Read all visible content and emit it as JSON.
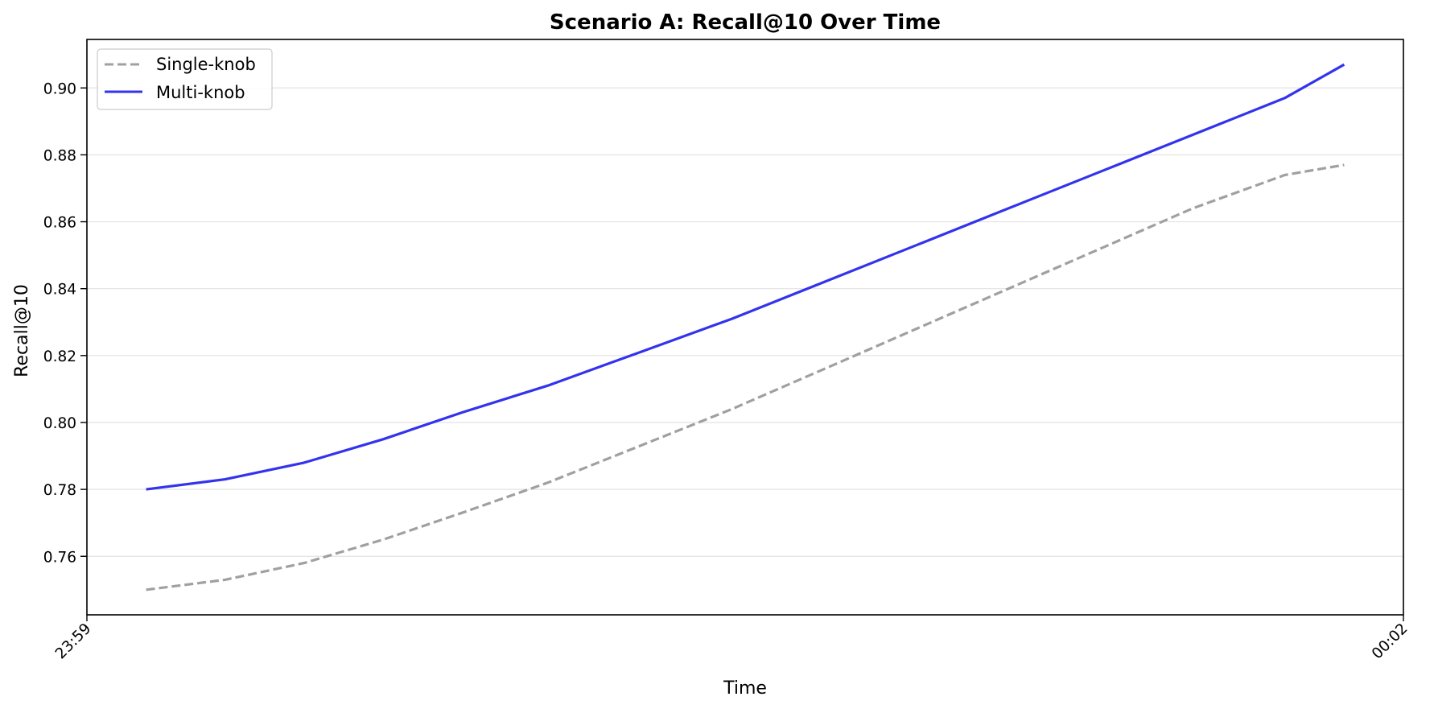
{
  "chart_data": {
    "type": "line",
    "title": "Scenario A: Recall@10 Over Time",
    "xlabel": "Time",
    "ylabel": "Recall@10",
    "x_tick_labels": [
      "23:59",
      "00:02"
    ],
    "y_ticks": [
      0.76,
      0.78,
      0.8,
      0.82,
      0.84,
      0.86,
      0.88,
      0.9
    ],
    "y_tick_labels": [
      "0.76",
      "0.78",
      "0.80",
      "0.82",
      "0.84",
      "0.86",
      "0.88",
      "0.90"
    ],
    "ylim": [
      0.7425,
      0.9145
    ],
    "grid": "horizontal",
    "legend_position": "top-left",
    "x_points": [
      0.045,
      0.105,
      0.165,
      0.225,
      0.285,
      0.35,
      0.42,
      0.49,
      0.56,
      0.63,
      0.7,
      0.77,
      0.84,
      0.91,
      0.955
    ],
    "series": [
      {
        "name": "Single-knob",
        "style": "dashed",
        "color": "#a0a0a0",
        "values": [
          0.75,
          0.753,
          0.758,
          0.765,
          0.773,
          0.782,
          0.793,
          0.804,
          0.816,
          0.828,
          0.84,
          0.852,
          0.864,
          0.874,
          0.877
        ]
      },
      {
        "name": "Multi-knob",
        "style": "solid",
        "color": "#3333ee",
        "values": [
          0.78,
          0.783,
          0.788,
          0.795,
          0.803,
          0.811,
          0.821,
          0.831,
          0.842,
          0.853,
          0.864,
          0.875,
          0.886,
          0.897,
          0.907
        ]
      }
    ]
  }
}
